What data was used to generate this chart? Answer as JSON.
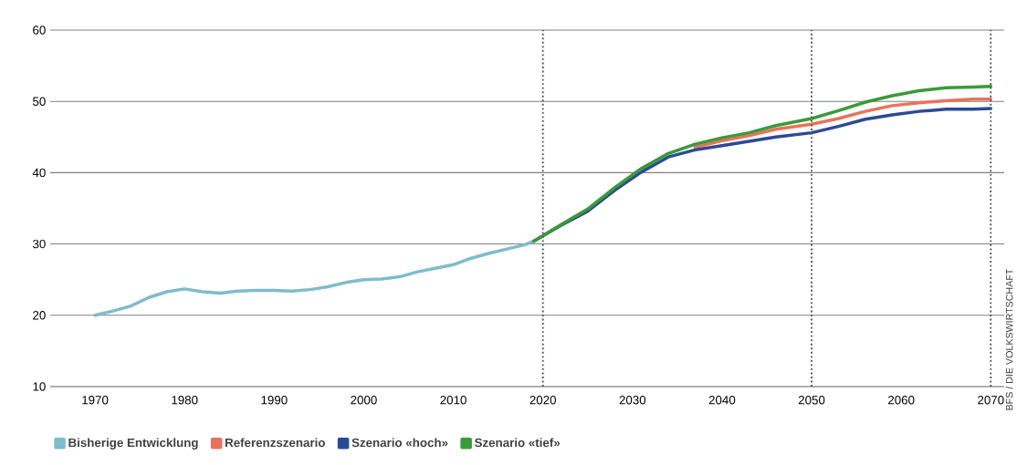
{
  "chart_data": {
    "type": "line",
    "xlim": [
      1965,
      2071.5
    ],
    "ylim": [
      10,
      60
    ],
    "xticks": [
      1970,
      1980,
      1990,
      2000,
      2010,
      2020,
      2030,
      2040,
      2050,
      2060,
      2070
    ],
    "yticks": [
      10,
      20,
      30,
      40,
      50,
      60
    ],
    "grid": "y",
    "legend": "bottom left",
    "marker": "none",
    "line_style": "solid",
    "series": [
      {
        "name": "Bisherige Entwicklung",
        "color": "#7fbccc",
        "x": [
          1970,
          1972,
          1974,
          1976,
          1978,
          1980,
          1982,
          1984,
          1986,
          1988,
          1990,
          1992,
          1994,
          1996,
          1998,
          2000,
          2002,
          2004,
          2006,
          2008,
          2010,
          2012,
          2014,
          2016,
          2018,
          2019
        ],
        "values": [
          20.0,
          20.6,
          21.3,
          22.5,
          23.3,
          23.7,
          23.3,
          23.1,
          23.4,
          23.5,
          23.5,
          23.4,
          23.6,
          24.0,
          24.6,
          25.0,
          25.1,
          25.4,
          26.1,
          26.6,
          27.1,
          28.0,
          28.7,
          29.3,
          29.9,
          30.4
        ]
      },
      {
        "name": "Referenzszenario",
        "color": "#e8735a",
        "x": [
          2037,
          2040,
          2043,
          2046,
          2050,
          2053,
          2056,
          2059,
          2062,
          2065,
          2068,
          2070
        ],
        "values": [
          43.6,
          44.5,
          45.2,
          46.1,
          46.8,
          47.6,
          48.6,
          49.4,
          49.8,
          50.1,
          50.3,
          50.3
        ]
      },
      {
        "name": "Szenario «hoch»",
        "color": "#2b4a96",
        "x": [
          2019,
          2022,
          2025,
          2028,
          2031,
          2034,
          2037,
          2040,
          2043,
          2046,
          2050,
          2053,
          2056,
          2059,
          2062,
          2065,
          2068,
          2070
        ],
        "values": [
          30.4,
          32.6,
          34.6,
          37.5,
          40.1,
          42.2,
          43.2,
          43.8,
          44.4,
          45.0,
          45.6,
          46.5,
          47.5,
          48.1,
          48.6,
          48.9,
          48.9,
          49.0
        ]
      },
      {
        "name": "Szenario «tief»",
        "color": "#3a9a3a",
        "x": [
          2019,
          2022,
          2025,
          2028,
          2031,
          2034,
          2037,
          2040,
          2043,
          2046,
          2050,
          2053,
          2056,
          2059,
          2062,
          2065,
          2068,
          2070
        ],
        "values": [
          30.4,
          32.7,
          34.9,
          37.9,
          40.6,
          42.7,
          44.0,
          44.9,
          45.6,
          46.6,
          47.6,
          48.7,
          49.9,
          50.8,
          51.5,
          51.9,
          52.0,
          52.1
        ]
      }
    ],
    "ref_lines": [
      {
        "axis": "x",
        "value": 2020,
        "color": "#555555",
        "line_style": "dotted"
      },
      {
        "axis": "x",
        "value": 2050,
        "color": "#555555",
        "line_style": "dotted"
      },
      {
        "axis": "x",
        "value": 2070,
        "color": "#555555",
        "line_style": "dotted"
      }
    ],
    "annotations": [
      "BFS / DIE VOLKSWIRTSCHAFT"
    ]
  }
}
